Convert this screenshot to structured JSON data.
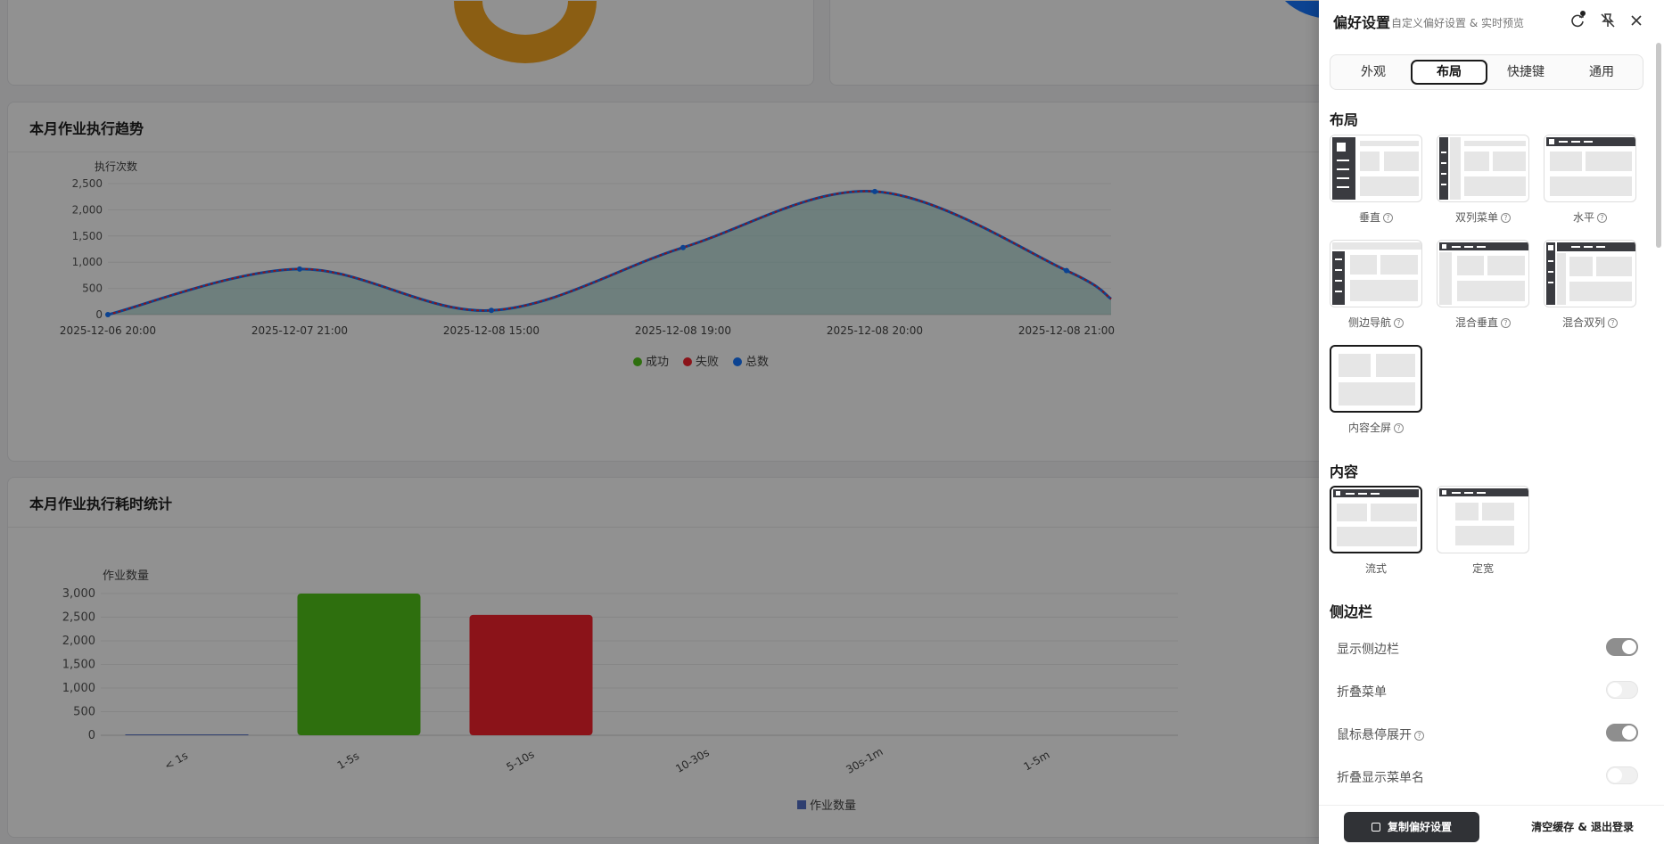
{
  "dashboard": {
    "trend_card": {
      "title": "本月作业执行趋势",
      "chart_data": {
        "type": "area",
        "ylabel": "执行次数",
        "ylim": [
          0,
          2500
        ],
        "yticks": [
          "2,500",
          "2,000",
          "1,500",
          "1,000",
          "500",
          "0"
        ],
        "x": [
          "2025-12-06 20:00",
          "2025-12-07 21:00",
          "2025-12-08 15:00",
          "2025-12-08 19:00",
          "2025-12-08 20:00",
          "2025-12-08 21:00"
        ],
        "series": [
          {
            "name": "成功",
            "color": "#52c41a"
          },
          {
            "name": "失败",
            "color": "#f5222d"
          },
          {
            "name": "总数",
            "color": "#1677ff",
            "values": [
              0,
              870,
              80,
              1280,
              2350,
              840
            ]
          }
        ],
        "legend_position": "bottom",
        "grid": true
      }
    },
    "duration_card": {
      "title": "本月作业执行耗时统计",
      "chart_data": {
        "type": "bar",
        "ylabel": "作业数量",
        "ylim": [
          0,
          3000
        ],
        "yticks": [
          "3,000",
          "2,500",
          "2,000",
          "1,500",
          "1,000",
          "500",
          "0"
        ],
        "categories": [
          "< 1s",
          "1-5s",
          "5-10s",
          "10-30s",
          "30s-1m",
          "1-5m"
        ],
        "values": [
          10,
          3000,
          2550,
          0,
          0,
          0
        ],
        "bar_colors": [
          "#5470c6",
          "#52c41a",
          "#f5222d",
          "#5470c6",
          "#5470c6",
          "#5470c6"
        ],
        "series": [
          {
            "name": "作业数量",
            "color": "#5470c6"
          }
        ],
        "legend_position": "bottom",
        "grid": true
      }
    }
  },
  "drawer": {
    "title": "偏好设置",
    "subtitle": "自定义偏好设置 & 实时预览",
    "header_icons": [
      "refresh-icon",
      "pin-off-icon",
      "close-icon"
    ],
    "tabs": [
      {
        "label": "外观",
        "active": false
      },
      {
        "label": "布局",
        "active": true
      },
      {
        "label": "快捷键",
        "active": false
      },
      {
        "label": "通用",
        "active": false
      }
    ],
    "layout_section": {
      "title": "布局",
      "options": [
        {
          "label": "垂直",
          "help": "?",
          "selected": false
        },
        {
          "label": "双列菜单",
          "help": "?",
          "selected": false
        },
        {
          "label": "水平",
          "help": "?",
          "selected": false
        },
        {
          "label": "侧边导航",
          "help": "?",
          "selected": false
        },
        {
          "label": "混合垂直",
          "help": "?",
          "selected": false
        },
        {
          "label": "混合双列",
          "help": "?",
          "selected": false
        },
        {
          "label": "内容全屏",
          "help": "?",
          "selected": true
        }
      ]
    },
    "content_section": {
      "title": "内容",
      "options": [
        {
          "label": "流式",
          "selected": true
        },
        {
          "label": "定宽",
          "selected": false
        }
      ]
    },
    "sidebar_section": {
      "title": "侧边栏",
      "rows": [
        {
          "label": "显示侧边栏",
          "on": true,
          "help": false
        },
        {
          "label": "折叠菜单",
          "on": false,
          "help": false
        },
        {
          "label": "鼠标悬停展开",
          "on": true,
          "help": true
        },
        {
          "label": "折叠显示菜单名",
          "on": false,
          "help": false
        }
      ]
    },
    "footer": {
      "copy_label": "复制偏好设置",
      "clear_label": "清空缓存 & 退出登录"
    }
  }
}
